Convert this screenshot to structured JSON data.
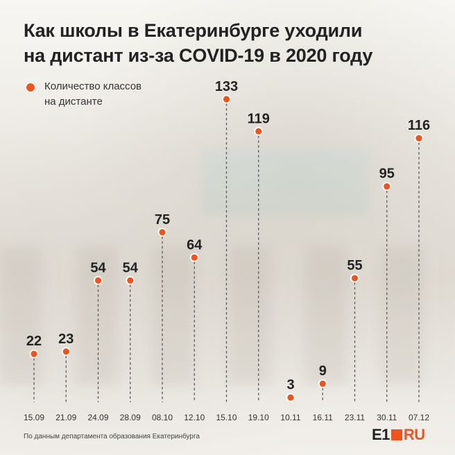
{
  "title_lines": [
    "Как школы в Екатеринбурге уходили",
    "на дистант из-за COVID-19 в 2020 году"
  ],
  "legend_lines": [
    "Количество классов",
    "на дистанте"
  ],
  "source": "По данным департамента образования Екатеринбурга",
  "logo": {
    "e1": "E1",
    "ru": "RU"
  },
  "colors": {
    "marker": "#f0531c",
    "text": "#222222",
    "stem": "#555555"
  },
  "chart_data": {
    "type": "scatter",
    "categories": [
      "15.09",
      "21.09",
      "24.09",
      "28.09",
      "08.10",
      "12.10",
      "15.10",
      "19.10",
      "10.11",
      "16.11",
      "23.11",
      "30.11",
      "07.12"
    ],
    "values": [
      22,
      23,
      54,
      54,
      75,
      64,
      133,
      119,
      3,
      9,
      55,
      95,
      116
    ],
    "legend": [
      "Количество классов на дистанте"
    ],
    "ylim": [
      0,
      133
    ],
    "grid": false
  }
}
